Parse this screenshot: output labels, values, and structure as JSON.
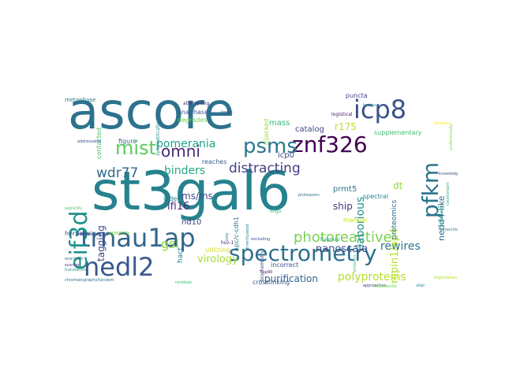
{
  "words": [
    {
      "text": "st3gal6",
      "color": "#26828e"
    },
    {
      "text": "ascore",
      "color": "#2c728e"
    },
    {
      "text": "trnau1ap",
      "color": "#31668e"
    },
    {
      "text": "spectrometry",
      "color": "#2d708e"
    },
    {
      "text": "nedl2",
      "color": "#38598c"
    },
    {
      "text": "znf326",
      "color": "#440154"
    },
    {
      "text": "icp8",
      "color": "#3b528b"
    },
    {
      "text": "psms",
      "color": "#2a788e"
    },
    {
      "text": "eif3d",
      "color": "#21918c"
    },
    {
      "text": "pfkm",
      "color": "#2b758e"
    },
    {
      "text": "mist",
      "color": "#5ec962"
    },
    {
      "text": "omni",
      "color": "#482878"
    },
    {
      "text": "pomerania",
      "color": "#20a386"
    },
    {
      "text": "distracting",
      "color": "#433e85"
    },
    {
      "text": "wdr77",
      "color": "#31688e"
    },
    {
      "text": "photoreactive",
      "color": "#7ad151"
    },
    {
      "text": "gsl",
      "color": "#95d840"
    },
    {
      "text": "virology",
      "color": "#a5db36"
    },
    {
      "text": "polyproteins",
      "color": "#b5de2b"
    },
    {
      "text": "purification",
      "color": "#33638d"
    },
    {
      "text": "rewires",
      "color": "#2c728e"
    },
    {
      "text": "nanoscale",
      "color": "#3b528b"
    },
    {
      "text": "repin1/ap4",
      "color": "#b5de2b"
    },
    {
      "text": "laborious",
      "color": "#21918c"
    },
    {
      "text": "binders",
      "color": "#22a884"
    },
    {
      "text": "nedd4-like",
      "color": "#2d708e"
    },
    {
      "text": "ifi16",
      "color": "#472d7b"
    },
    {
      "text": "ms/ms",
      "color": "#3e4989"
    },
    {
      "text": "tagging",
      "color": "#404688"
    },
    {
      "text": "nd10",
      "color": "#414487"
    },
    {
      "text": "ship",
      "color": "#46337f"
    },
    {
      "text": "dt",
      "color": "#8fd744"
    },
    {
      "text": "prmt5",
      "color": "#2a788e"
    },
    {
      "text": "r175",
      "color": "#bddf26"
    },
    {
      "text": "icp0",
      "color": "#3e4989"
    },
    {
      "text": "mass",
      "color": "#35b779"
    },
    {
      "text": "catalog",
      "color": "#3f4788"
    },
    {
      "text": "anaphase",
      "color": "#39568c"
    },
    {
      "text": "degrades",
      "color": "#6ece58"
    },
    {
      "text": "figure",
      "color": "#2f6c8e"
    },
    {
      "text": "indels",
      "color": "#277f8e"
    },
    {
      "text": "reaches",
      "color": "#355f8d"
    },
    {
      "text": "puncta",
      "color": "#404688"
    },
    {
      "text": "supplementary",
      "color": "#3fbc73"
    },
    {
      "text": "spectral",
      "color": "#25858e"
    },
    {
      "text": "proteomics",
      "color": "#31688e"
    },
    {
      "text": "manual",
      "color": "#c8e020"
    },
    {
      "text": "incorrect",
      "color": "#3b528b"
    },
    {
      "text": "crosslinking",
      "color": "#355f8d"
    },
    {
      "text": "hijacked",
      "color": "#a2da37"
    },
    {
      "text": "apc/c-cdh1",
      "color": "#2a788e"
    },
    {
      "text": "hact",
      "color": "#29798e"
    },
    {
      "text": "utilizing",
      "color": "#d8e219"
    },
    {
      "text": "contacted",
      "color": "#4ac16d"
    },
    {
      "text": "herpesviruses",
      "color": "#3b528b"
    },
    {
      "text": "spectra",
      "color": "#7ad151"
    },
    {
      "text": "metaphase",
      "color": "#2a788e"
    },
    {
      "text": "symmetrically",
      "color": "#228d8d"
    },
    {
      "text": "attempting",
      "color": "#472c7a"
    },
    {
      "text": "ligase",
      "color": "#3a548c"
    },
    {
      "text": "logistical",
      "color": "#482374"
    },
    {
      "text": "flapmap",
      "color": "#20a486"
    },
    {
      "text": "dimethylated",
      "color": "#24878e"
    },
    {
      "text": "oligo",
      "color": "#32b67a"
    },
    {
      "text": "biochemistry",
      "color": "#3d4d8a"
    },
    {
      "text": "proteasom",
      "color": "#2e6e8e"
    },
    {
      "text": "approaches",
      "color": "#443983"
    },
    {
      "text": "chromatography/tandem",
      "color": "#2e6f8e"
    },
    {
      "text": "importantly",
      "color": "#6ece58"
    },
    {
      "text": "importation",
      "color": "#addc30"
    },
    {
      "text": "vital",
      "color": "#277f8e"
    },
    {
      "text": "residues",
      "color": "#38b977"
    },
    {
      "text": "translation",
      "color": "#1f998a"
    },
    {
      "text": "scoring",
      "color": "#453781"
    },
    {
      "text": "one-third",
      "color": "#2c728e"
    },
    {
      "text": "variance",
      "color": "#375a8c"
    },
    {
      "text": "addressable",
      "color": "#3a548c"
    },
    {
      "text": "substrates",
      "color": "#1fa088"
    },
    {
      "text": "knowledge",
      "color": "#3b518b"
    },
    {
      "text": "excluding",
      "color": "#3d4e8a"
    },
    {
      "text": "explicitly",
      "color": "#4ec36b"
    },
    {
      "text": "hsv-1",
      "color": "#482475"
    },
    {
      "text": "bodies",
      "color": "#20928c"
    },
    {
      "text": "vimentin",
      "color": "#31b57b"
    },
    {
      "text": "hsp90",
      "color": "#471063"
    },
    {
      "text": "poly",
      "color": "#26828e"
    },
    {
      "text": "hierarchical",
      "color": "#2a768e"
    },
    {
      "text": "counterpart",
      "color": "#25ab82"
    },
    {
      "text": "preferentially",
      "color": "#89d548"
    },
    {
      "text": "domains",
      "color": "#fde725"
    }
  ]
}
